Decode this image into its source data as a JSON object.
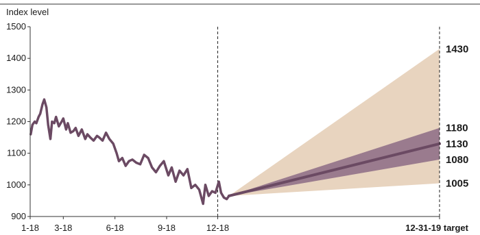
{
  "chart_data": {
    "type": "line",
    "title": "",
    "ylabel": "Index level",
    "xlabel": "",
    "ylim": [
      900,
      1500
    ],
    "y_ticks": [
      900,
      1000,
      1100,
      1200,
      1300,
      1400,
      1500
    ],
    "x_tick_labels": [
      "1-18",
      "3-18",
      "6-18",
      "9-18",
      "12-18",
      "12-31-19 target"
    ],
    "x_tick_dates": [
      "2018-01-01",
      "2018-03-01",
      "2018-06-01",
      "2018-09-01",
      "2018-12-01",
      "2019-12-31"
    ],
    "vertical_markers": [
      "2018-12-01",
      "2019-12-31"
    ],
    "grid": false,
    "colors": {
      "history_line": "#6b4a63",
      "forecast_line": "#6b4a63",
      "outer_band": "#e8d4bf",
      "inner_band": "#9a7b8e",
      "axis": "#333333"
    },
    "history": {
      "x": [
        "2018-01-02",
        "2018-01-05",
        "2018-01-09",
        "2018-01-12",
        "2018-01-16",
        "2018-01-19",
        "2018-01-23",
        "2018-01-26",
        "2018-01-30",
        "2018-02-02",
        "2018-02-06",
        "2018-02-09",
        "2018-02-13",
        "2018-02-16",
        "2018-02-21",
        "2018-02-26",
        "2018-03-01",
        "2018-03-06",
        "2018-03-09",
        "2018-03-14",
        "2018-03-19",
        "2018-03-23",
        "2018-03-28",
        "2018-04-03",
        "2018-04-09",
        "2018-04-13",
        "2018-04-18",
        "2018-04-24",
        "2018-04-30",
        "2018-05-04",
        "2018-05-10",
        "2018-05-16",
        "2018-05-22",
        "2018-05-29",
        "2018-06-04",
        "2018-06-08",
        "2018-06-14",
        "2018-06-20",
        "2018-06-26",
        "2018-07-02",
        "2018-07-09",
        "2018-07-16",
        "2018-07-23",
        "2018-07-30",
        "2018-08-06",
        "2018-08-13",
        "2018-08-20",
        "2018-08-27",
        "2018-09-04",
        "2018-09-10",
        "2018-09-17",
        "2018-09-24",
        "2018-10-01",
        "2018-10-08",
        "2018-10-15",
        "2018-10-22",
        "2018-10-29",
        "2018-11-05",
        "2018-11-09",
        "2018-11-15",
        "2018-11-21",
        "2018-11-27",
        "2018-12-03",
        "2018-12-07",
        "2018-12-12",
        "2018-12-17",
        "2018-12-21"
      ],
      "values": [
        1160,
        1190,
        1200,
        1195,
        1215,
        1225,
        1255,
        1270,
        1245,
        1190,
        1145,
        1200,
        1195,
        1215,
        1185,
        1200,
        1210,
        1175,
        1195,
        1165,
        1170,
        1180,
        1155,
        1175,
        1145,
        1160,
        1150,
        1140,
        1155,
        1150,
        1140,
        1165,
        1145,
        1130,
        1100,
        1075,
        1085,
        1060,
        1075,
        1080,
        1070,
        1065,
        1095,
        1085,
        1055,
        1040,
        1060,
        1075,
        1030,
        1055,
        1010,
        1045,
        1030,
        1050,
        990,
        1000,
        985,
        940,
        1000,
        965,
        980,
        975,
        1010,
        975,
        960,
        955,
        965
      ]
    },
    "forecast": {
      "x": [
        "2018-12-21",
        "2019-12-31"
      ],
      "central": [
        965,
        1130
      ],
      "inner_upper": [
        965,
        1180
      ],
      "inner_lower": [
        965,
        1080
      ],
      "outer_upper": [
        965,
        1430
      ],
      "outer_lower": [
        965,
        1005
      ]
    },
    "end_labels": [
      "1430",
      "1180",
      "1130",
      "1080",
      "1005"
    ]
  }
}
